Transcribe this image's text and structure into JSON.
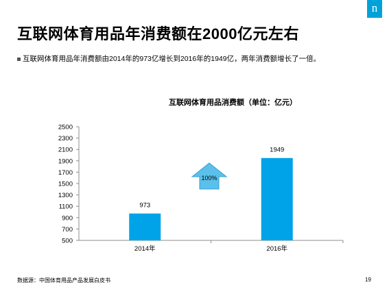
{
  "slide": {
    "logo_glyph": "n",
    "title": "互联网体育用品年消费额在2000亿元左右",
    "bullet": "互联网体育用品年消费额由2014年的973亿增长到2016年的1949亿，两年消费额增长了一倍。",
    "source": "数据源：中国体育用品产品发展白皮书",
    "page_number": "19"
  },
  "chart_data": {
    "type": "bar",
    "title": "互联网体育用品消费额（单位：亿元）",
    "categories": [
      "2014年",
      "2016年"
    ],
    "values": [
      973,
      1949
    ],
    "data_labels": [
      "973",
      "1949"
    ],
    "ylim": [
      500,
      2500
    ],
    "yticks": [
      500,
      700,
      900,
      1100,
      1300,
      1500,
      1700,
      1900,
      2100,
      2300,
      2500
    ],
    "bar_color": "#00a3e8",
    "annotation": {
      "label": "100%",
      "color": "#5bc0ea"
    },
    "grid": false,
    "legend": "none"
  }
}
